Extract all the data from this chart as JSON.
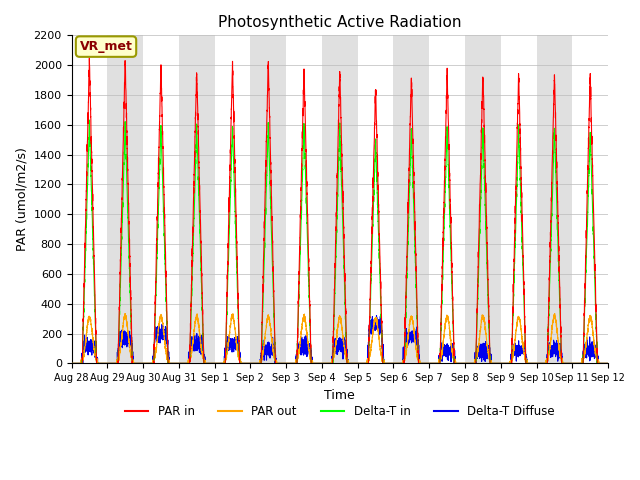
{
  "title": "Photosynthetic Active Radiation",
  "ylabel": "PAR (umol/m2/s)",
  "xlabel": "Time",
  "annotation": "VR_met",
  "ylim": [
    0,
    2200
  ],
  "yticks": [
    0,
    200,
    400,
    600,
    800,
    1000,
    1200,
    1400,
    1600,
    1800,
    2000,
    2200
  ],
  "n_days": 15,
  "day_labels": [
    "Aug 28",
    "Aug 29",
    "Aug 30",
    "Aug 31",
    "Sep 1",
    "Sep 2",
    "Sep 3",
    "Sep 4",
    "Sep 5",
    "Sep 6",
    "Sep 7",
    "Sep 8",
    "Sep 9",
    "Sep 10",
    "Sep 11",
    "Sep 12"
  ],
  "PAR_in_peaks": [
    2040,
    2030,
    2000,
    1970,
    2010,
    2030,
    1980,
    1960,
    1840,
    1920,
    1950,
    1950,
    1940,
    1950,
    1945
  ],
  "PAR_out_peaks": [
    310,
    320,
    315,
    315,
    320,
    310,
    310,
    305,
    300,
    310,
    315,
    315,
    310,
    315,
    310
  ],
  "DeltaT_in_peaks": [
    1620,
    1605,
    1595,
    1590,
    1605,
    1605,
    1605,
    1590,
    1500,
    1570,
    1585,
    1585,
    1580,
    1585,
    1550
  ],
  "DeltaT_diff_peaks": [
    110,
    160,
    200,
    130,
    130,
    90,
    100,
    120,
    260,
    180,
    85,
    80,
    90,
    90,
    85
  ],
  "colors": {
    "PAR_in": "#ff0000",
    "PAR_out": "#ffa500",
    "DeltaT_in": "#00ff00",
    "DeltaT_diff": "#0000ee",
    "background_strip": "#e0e0e0",
    "annotation_bg": "#ffffcc",
    "annotation_border": "#999900"
  },
  "background_color": "#ffffff"
}
